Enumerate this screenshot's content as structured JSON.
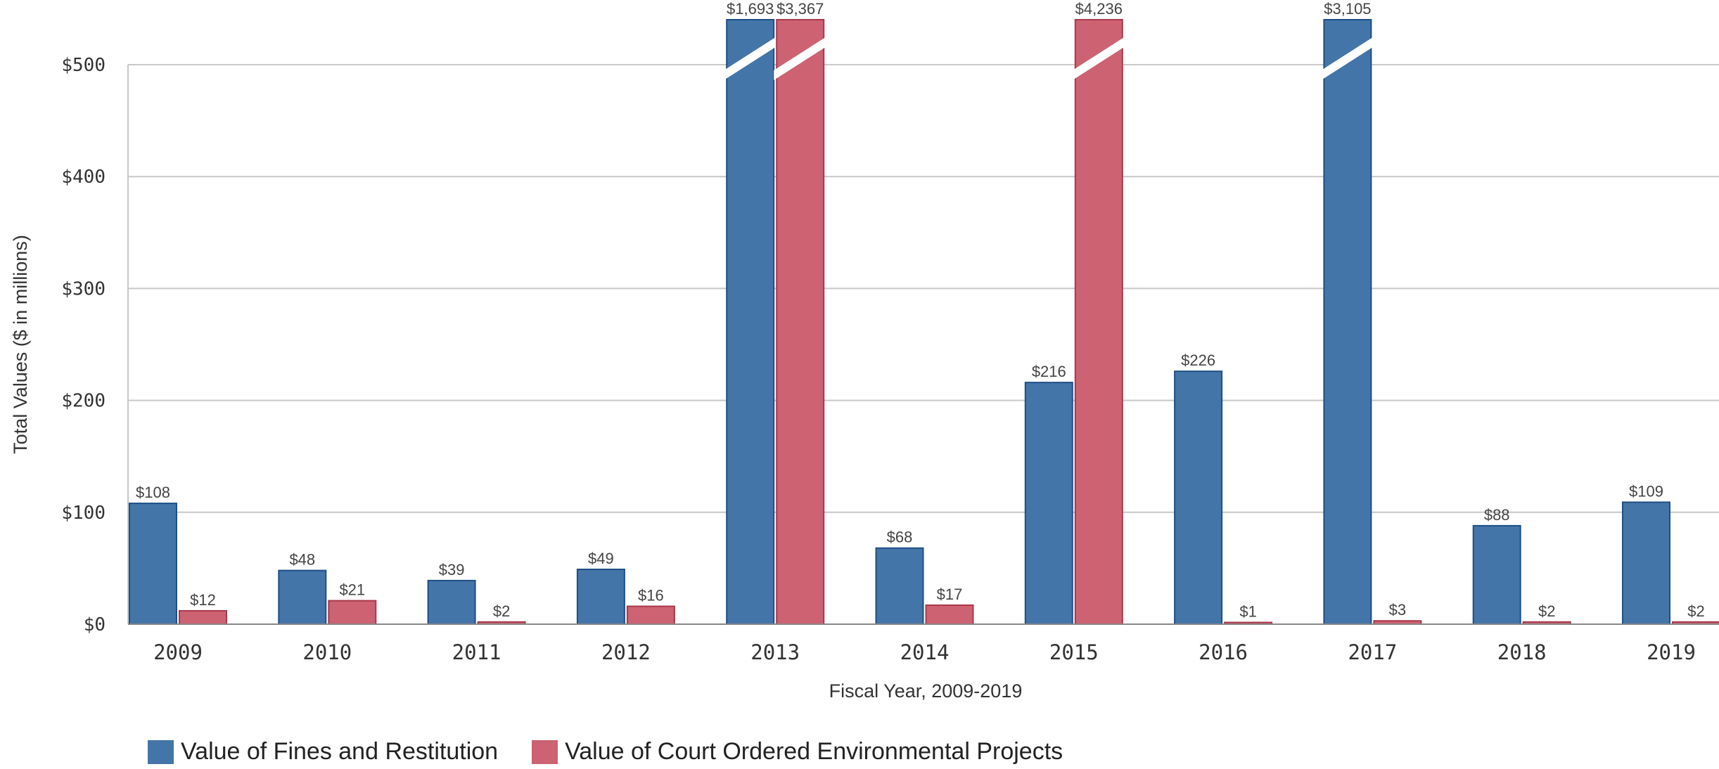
{
  "chart_data": {
    "type": "bar",
    "title": "",
    "xlabel": "Fiscal Year, 2009-2019",
    "ylabel": "Total Values ($ in millions)",
    "ylim": [
      0,
      500
    ],
    "y_ticks": [
      "$0",
      "$100",
      "$200",
      "$300",
      "$400",
      "$500"
    ],
    "y_tick_values": [
      0,
      100,
      200,
      300,
      400,
      500
    ],
    "grid": true,
    "legend_position": "bottom-left",
    "axis_break": "bars exceeding $500 shown truncated with a break mark",
    "categories": [
      "2009",
      "2010",
      "2011",
      "2012",
      "2013",
      "2014",
      "2015",
      "2016",
      "2017",
      "2018",
      "2019"
    ],
    "series": [
      {
        "name": "Value of Fines and Restitution",
        "color": "#4475a8",
        "values": [
          108,
          48,
          39,
          49,
          1693,
          68,
          216,
          226,
          3105,
          88,
          109
        ],
        "labels": [
          "$108",
          "$48",
          "$39",
          "$49",
          "$1,693",
          "$68",
          "$216",
          "$226",
          "$3,105",
          "$88",
          "$109"
        ]
      },
      {
        "name": "Value of Court Ordered Environmental Projects",
        "color": "#cc6272",
        "values": [
          12,
          21,
          2,
          16,
          3367,
          17,
          4236,
          1,
          3,
          2,
          2
        ],
        "labels": [
          "$12",
          "$21",
          "$2",
          "$16",
          "$3,367",
          "$17",
          "$4,236",
          "$1",
          "$3",
          "$2",
          "$2"
        ]
      }
    ]
  }
}
